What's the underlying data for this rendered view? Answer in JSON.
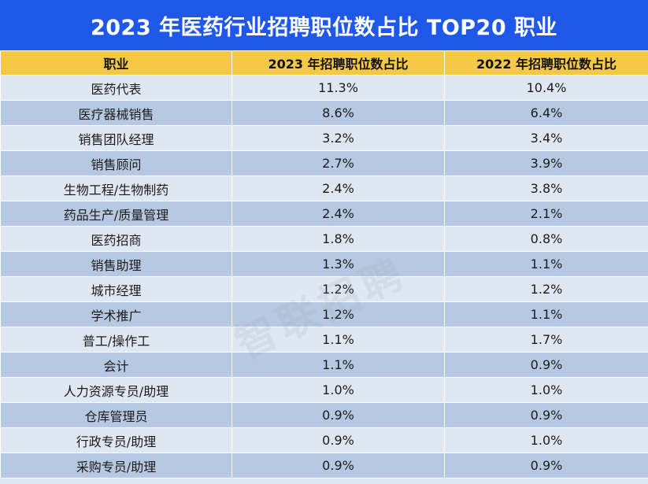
{
  "title": "2023 年医药行业招聘职位数占比 TOP20 职业",
  "headers": [
    "职业",
    "2023 年招聘职位数占比",
    "2022 年招聘职位数占比"
  ],
  "rows": [
    [
      "医药代表",
      "11.3%",
      "10.4%"
    ],
    [
      "医疗器械销售",
      "8.6%",
      "6.4%"
    ],
    [
      "销售团队经理",
      "3.2%",
      "3.4%"
    ],
    [
      "销售顾问",
      "2.7%",
      "3.9%"
    ],
    [
      "生物工程/生物制药",
      "2.4%",
      "3.8%"
    ],
    [
      "药品生产/质量管理",
      "2.4%",
      "2.1%"
    ],
    [
      "医药招商",
      "1.8%",
      "0.8%"
    ],
    [
      "销售助理",
      "1.3%",
      "1.1%"
    ],
    [
      "城市经理",
      "1.2%",
      "1.2%"
    ],
    [
      "学术推广",
      "1.2%",
      "1.1%"
    ],
    [
      "普工/操作工",
      "1.1%",
      "1.7%"
    ],
    [
      "会计",
      "1.1%",
      "0.9%"
    ],
    [
      "人力资源专员/助理",
      "1.0%",
      "1.0%"
    ],
    [
      "仓库管理员",
      "0.9%",
      "0.9%"
    ],
    [
      "行政专员/助理",
      "0.9%",
      "1.0%"
    ],
    [
      "采购专员/助理",
      "0.9%",
      "0.9%"
    ]
  ],
  "watermark": "智联招聘",
  "colors": {
    "title_bg": "#1f57e8",
    "header_bg": "#f5c945",
    "row_light": "#dfe7f2",
    "row_dark": "#b7c9e2"
  }
}
